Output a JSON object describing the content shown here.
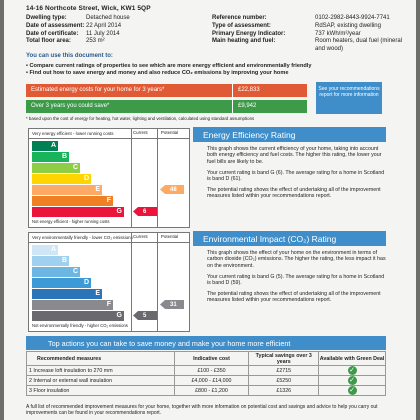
{
  "address": "14-16 Northcote Street, Wick, KW1 5QP",
  "property_left": [
    {
      "label": "Dwelling type:",
      "value": "Detached house"
    },
    {
      "label": "Date of assessment:",
      "value": "22 April 2014"
    },
    {
      "label": "Date of certificate:",
      "value": "11 July 2014"
    },
    {
      "label": "Total floor area:",
      "value": "253 m²"
    }
  ],
  "property_right": [
    {
      "label": "Reference number:",
      "value": "0102-2982-8443-9924-7741"
    },
    {
      "label": "Type of assessment:",
      "value": "RdSAP, existing dwelling"
    },
    {
      "label": "Primary Energy Indicator:",
      "value": "737 kWh/m²/year"
    },
    {
      "label": "Main heating and fuel:",
      "value": "Room heaters, dual fuel (mineral and wood)"
    }
  ],
  "use_heading": "You can use this document to:",
  "bullets": [
    "Compare current ratings of properties to see which are more energy efficient and environmentally friendly",
    "Find out how to save energy and money and also reduce CO₂ emissions by improving your home"
  ],
  "costs": {
    "estimated_label": "Estimated energy costs for your home for 3 years*",
    "estimated_value": "£22,833",
    "saving_label": "Over 3 years you could save*",
    "saving_value": "£9,942",
    "see_box": "See your recommendations report for more information",
    "footnote": "* based upon the cost of energy for heating, hot water, lighting and ventilation, calculated using standard assumptions"
  },
  "chart_common": {
    "current_header": "Current",
    "potential_header": "Potential"
  },
  "energy_chart": {
    "top_label": "Very energy efficient - lower running costs",
    "bottom_label": "Not energy efficient - higher running costs",
    "current": 6,
    "potential": 48,
    "current_band": "G",
    "potential_band": "E"
  },
  "env_chart": {
    "top_label": "Very environmentally friendly - lower CO₂ emissions",
    "bottom_label": "Not environmentally friendly - higher CO₂ emissions",
    "current": 5,
    "potential": 31,
    "current_band": "G",
    "potential_band": "F"
  },
  "bands": [
    "A",
    "B",
    "C",
    "D",
    "E",
    "F",
    "G"
  ],
  "band_colors": {
    "energy": [
      "#008054",
      "#19b459",
      "#8dce46",
      "#ffd500",
      "#fcaa65",
      "#ef8023",
      "#e9153b"
    ],
    "environment": [
      "#cfe6f6",
      "#9fd0f0",
      "#6cb6e4",
      "#3d9ad6",
      "#2b74b8",
      "#8a8a8e",
      "#6a6a6e"
    ]
  },
  "energy_panel": {
    "title": "Energy Efficiency Rating",
    "p1": "This graph shows the current efficiency of your home, taking into account both energy efficiency and fuel costs. The higher this rating, the lower your fuel bills are likely to be.",
    "p2": "Your current rating is band G (6). The average rating for a home in Scotland is band D (61).",
    "p3": "The potential rating shows the effect of undertaking all of the improvement measures listed within your recommendations report."
  },
  "env_panel": {
    "title": "Environmental Impact (CO₂) Rating",
    "p1": "This graph shows the effect of your home on the environment in terms of carbon dioxide (CO₂) emissions. The higher the rating, the less impact it has on the environment.",
    "p2": "Your current rating is band G (5). The average rating for a home in Scotland is band D (59).",
    "p3": "The potential rating shows the effect of undertaking all of the improvement measures listed within your recommendations report."
  },
  "top_actions": {
    "title": "Top actions you can take to save money and make your home more efficient",
    "col_measure": "Recommended measures",
    "col_cost": "Indicative cost",
    "col_saving": "Typical savings over 3 years",
    "col_green": "Available with Green Deal",
    "rows": [
      {
        "measure": "1 Increase loft insulation to 270 mm",
        "cost": "£100 - £350",
        "saving": "£2715"
      },
      {
        "measure": "2 Internal or external wall insulation",
        "cost": "£4,000 - £14,000",
        "saving": "£5250"
      },
      {
        "measure": "3 Floor insulation",
        "cost": "£800 - £1,200",
        "saving": "£1326"
      }
    ],
    "tick_symbol": "✓",
    "footnote": "A full list of recommended improvement measures for your home, together with more information on potential cost and savings and advice to help you carry out improvements can be found in your recommendations report."
  }
}
